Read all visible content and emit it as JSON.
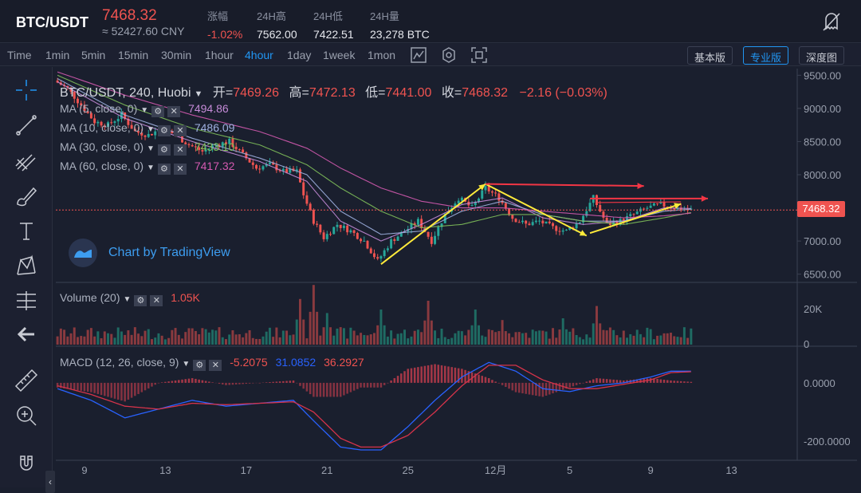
{
  "header": {
    "pair": "BTC/USDT",
    "last_price": "7468.32",
    "cny_price": "≈ 52427.60 CNY",
    "stats": [
      {
        "label": "涨幅",
        "value": "-1.02%",
        "red": true
      },
      {
        "label": "24H高",
        "value": "7562.00"
      },
      {
        "label": "24H低",
        "value": "7422.51"
      },
      {
        "label": "24H量",
        "value": "23,278 BTC"
      }
    ]
  },
  "toolbar": {
    "timeframes": [
      "Time",
      "1min",
      "5min",
      "15min",
      "30min",
      "1hour",
      "4hour",
      "1day",
      "1week",
      "1mon"
    ],
    "active_timeframe": "4hour",
    "views": [
      "基本版",
      "专业版",
      "深度图"
    ],
    "active_view": "专业版"
  },
  "sidebar": {
    "tools": [
      "crosshair-icon",
      "trendline-icon",
      "fib-icon",
      "brush-icon",
      "text-icon",
      "pattern-icon",
      "measure-icon",
      "back-arrow-icon",
      "ruler-icon",
      "zoom-in-icon",
      "magnet-icon"
    ],
    "collapse_label": "‹"
  },
  "chart_header": {
    "title": "BTC/USDT, 240, Huobi",
    "open_label": "开=",
    "open": "7469.26",
    "high_label": "高=",
    "high": "7472.13",
    "low_label": "低=",
    "low": "7441.00",
    "close_label": "收=",
    "close": "7468.32",
    "change": "−2.16 (−0.03%)"
  },
  "indicators": {
    "ma": [
      {
        "label": "MA (5, close, 0)",
        "value": "7494.86",
        "color": "#c58bd8"
      },
      {
        "label": "MA (10, close, 0)",
        "value": "7486.09",
        "color": "#9fb0e0"
      },
      {
        "label": "MA (30, close, 0)",
        "value": "7433.10",
        "color": "#7fbf5a"
      },
      {
        "label": "MA (60, close, 0)",
        "value": "7417.32",
        "color": "#d45ab0"
      }
    ],
    "volume": {
      "label": "Volume (20)",
      "value": "1.05K"
    },
    "macd": {
      "label": "MACD (12, 26, close, 9)",
      "hist": "-5.2075",
      "macd": "31.0852",
      "signal": "36.2927"
    }
  },
  "branding": "Chart by TradingView",
  "colors": {
    "up": "#26a69a",
    "down": "#ef5350",
    "accent": "#2196f3",
    "annot_red": "#f23645",
    "annot_yellow": "#ffeb3b"
  },
  "chart_data": {
    "type": "candlestick",
    "price_axis": {
      "ticks": [
        "9500.00",
        "9000.00",
        "8500.00",
        "8000.00",
        "7500.00",
        "7000.00",
        "6500.00"
      ],
      "ylim": [
        6400,
        9600
      ],
      "last_price_tag": "7468.32"
    },
    "volume_axis": {
      "ticks": [
        "20K",
        "0"
      ]
    },
    "macd_axis": {
      "ticks": [
        "0.0000",
        "-200.0000"
      ]
    },
    "x_ticks": [
      "9",
      "13",
      "17",
      "21",
      "25",
      "12月",
      "5",
      "9",
      "13"
    ],
    "price_path": [
      [
        0,
        9420
      ],
      [
        4,
        9300
      ],
      [
        8,
        9050
      ],
      [
        12,
        8800
      ],
      [
        16,
        8750
      ],
      [
        20,
        8900
      ],
      [
        24,
        8650
      ],
      [
        28,
        8600
      ],
      [
        32,
        8700
      ],
      [
        36,
        8600
      ],
      [
        40,
        8450
      ],
      [
        44,
        8350
      ],
      [
        48,
        8450
      ],
      [
        52,
        8500
      ],
      [
        56,
        8300
      ],
      [
        60,
        8100
      ],
      [
        64,
        8150
      ],
      [
        68,
        8050
      ],
      [
        72,
        8050
      ],
      [
        74,
        7700
      ],
      [
        77,
        7300
      ],
      [
        80,
        7050
      ],
      [
        84,
        7250
      ],
      [
        88,
        7150
      ],
      [
        92,
        7000
      ],
      [
        96,
        6700
      ],
      [
        100,
        7000
      ],
      [
        104,
        7150
      ],
      [
        108,
        7300
      ],
      [
        112,
        7000
      ],
      [
        116,
        7400
      ],
      [
        120,
        7650
      ],
      [
        124,
        7500
      ],
      [
        128,
        7800
      ],
      [
        132,
        7650
      ],
      [
        136,
        7350
      ],
      [
        140,
        7250
      ],
      [
        144,
        7300
      ],
      [
        148,
        7200
      ],
      [
        152,
        7150
      ],
      [
        156,
        7300
      ],
      [
        160,
        7650
      ],
      [
        164,
        7250
      ],
      [
        168,
        7300
      ],
      [
        172,
        7400
      ],
      [
        176,
        7500
      ],
      [
        180,
        7550
      ],
      [
        184,
        7500
      ],
      [
        188,
        7470
      ]
    ],
    "ma_paths": [
      {
        "name": "MA5",
        "color": "#c58bd8",
        "points": [
          [
            0,
            9400
          ],
          [
            20,
            8850
          ],
          [
            40,
            8500
          ],
          [
            60,
            8200
          ],
          [
            74,
            7900
          ],
          [
            84,
            7300
          ],
          [
            96,
            7000
          ],
          [
            108,
            7250
          ],
          [
            120,
            7550
          ],
          [
            132,
            7650
          ],
          [
            144,
            7350
          ],
          [
            156,
            7250
          ],
          [
            168,
            7300
          ],
          [
            180,
            7500
          ],
          [
            188,
            7490
          ]
        ]
      },
      {
        "name": "MA10",
        "color": "#9fb0e0",
        "points": [
          [
            0,
            9450
          ],
          [
            20,
            8900
          ],
          [
            40,
            8550
          ],
          [
            60,
            8250
          ],
          [
            74,
            8000
          ],
          [
            84,
            7450
          ],
          [
            96,
            7100
          ],
          [
            108,
            7150
          ],
          [
            120,
            7450
          ],
          [
            132,
            7600
          ],
          [
            144,
            7400
          ],
          [
            156,
            7300
          ],
          [
            168,
            7300
          ],
          [
            180,
            7450
          ],
          [
            188,
            7480
          ]
        ]
      },
      {
        "name": "MA30",
        "color": "#7fbf5a",
        "points": [
          [
            0,
            9500
          ],
          [
            20,
            9050
          ],
          [
            40,
            8700
          ],
          [
            60,
            8450
          ],
          [
            74,
            8150
          ],
          [
            84,
            7800
          ],
          [
            96,
            7450
          ],
          [
            108,
            7200
          ],
          [
            120,
            7250
          ],
          [
            132,
            7400
          ],
          [
            144,
            7400
          ],
          [
            156,
            7300
          ],
          [
            168,
            7250
          ],
          [
            180,
            7350
          ],
          [
            188,
            7430
          ]
        ]
      },
      {
        "name": "MA60",
        "color": "#d45ab0",
        "points": [
          [
            0,
            9550
          ],
          [
            20,
            9200
          ],
          [
            40,
            8900
          ],
          [
            60,
            8650
          ],
          [
            74,
            8400
          ],
          [
            84,
            8100
          ],
          [
            96,
            7800
          ],
          [
            108,
            7600
          ],
          [
            120,
            7500
          ],
          [
            132,
            7500
          ],
          [
            144,
            7450
          ],
          [
            156,
            7400
          ],
          [
            168,
            7350
          ],
          [
            180,
            7380
          ],
          [
            188,
            7420
          ]
        ]
      }
    ],
    "volume_range": [
      0,
      30000
    ],
    "volume_spikes": [
      [
        72,
        26000
      ],
      [
        76,
        34000
      ],
      [
        80,
        18000
      ],
      [
        96,
        20000
      ],
      [
        110,
        25000
      ],
      [
        124,
        20000
      ],
      [
        132,
        14000
      ],
      [
        150,
        15000
      ],
      [
        160,
        22000
      ]
    ],
    "macd_range": [
      -260,
      120
    ],
    "macd_line": [
      [
        0,
        -20
      ],
      [
        10,
        -60
      ],
      [
        20,
        -120
      ],
      [
        30,
        -90
      ],
      [
        40,
        -60
      ],
      [
        50,
        -80
      ],
      [
        60,
        -70
      ],
      [
        70,
        -60
      ],
      [
        76,
        -130
      ],
      [
        84,
        -220
      ],
      [
        90,
        -230
      ],
      [
        96,
        -230
      ],
      [
        104,
        -150
      ],
      [
        112,
        -60
      ],
      [
        120,
        20
      ],
      [
        128,
        70
      ],
      [
        136,
        40
      ],
      [
        144,
        -20
      ],
      [
        152,
        -30
      ],
      [
        160,
        -10
      ],
      [
        168,
        0
      ],
      [
        176,
        20
      ],
      [
        182,
        40
      ],
      [
        188,
        40
      ]
    ],
    "signal_line": [
      [
        0,
        -10
      ],
      [
        10,
        -40
      ],
      [
        20,
        -80
      ],
      [
        30,
        -90
      ],
      [
        40,
        -70
      ],
      [
        50,
        -75
      ],
      [
        60,
        -70
      ],
      [
        70,
        -65
      ],
      [
        76,
        -100
      ],
      [
        84,
        -190
      ],
      [
        90,
        -220
      ],
      [
        96,
        -220
      ],
      [
        104,
        -180
      ],
      [
        112,
        -100
      ],
      [
        120,
        -10
      ],
      [
        128,
        60
      ],
      [
        136,
        60
      ],
      [
        144,
        10
      ],
      [
        152,
        -20
      ],
      [
        160,
        -20
      ],
      [
        168,
        -5
      ],
      [
        176,
        10
      ],
      [
        182,
        35
      ],
      [
        188,
        38
      ]
    ]
  }
}
